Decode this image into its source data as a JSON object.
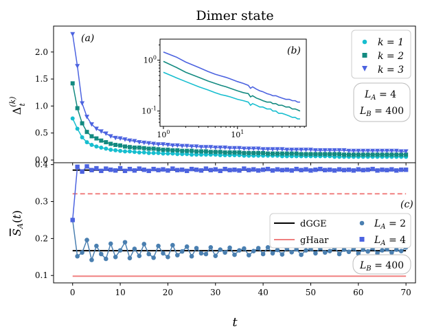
{
  "chart_data": [
    {
      "type": "scatter",
      "panel_label": "(a)",
      "title": "Dimer state",
      "ylabel": "Δ_t^(k)",
      "xlim": [
        -4,
        72
      ],
      "ylim": [
        -0.05,
        2.48
      ],
      "yticks": [
        "0.0",
        "0.5",
        "1.0",
        "1.5",
        "2.0"
      ],
      "legend_position": "upper right",
      "box_labels": [
        "L_A = 4",
        "L_B = 400"
      ],
      "series": [
        {
          "name": "k = 1",
          "color": "#17becf",
          "marker": "circle",
          "values": [
            0.77,
            0.58,
            0.42,
            0.33,
            0.28,
            0.25,
            0.23,
            0.21,
            0.19,
            0.18,
            0.17,
            0.16,
            0.16,
            0.15,
            0.14,
            0.14,
            0.13,
            0.13,
            0.13,
            0.12,
            0.12,
            0.12,
            0.11,
            0.11,
            0.11,
            0.1,
            0.1,
            0.1,
            0.1,
            0.1,
            0.1,
            0.09,
            0.09,
            0.09,
            0.09,
            0.09,
            0.08,
            0.08,
            0.08,
            0.08,
            0.08,
            0.08,
            0.08,
            0.08,
            0.07,
            0.07,
            0.07,
            0.07,
            0.07,
            0.07,
            0.07,
            0.07,
            0.07,
            0.07,
            0.07,
            0.06,
            0.06,
            0.06,
            0.06,
            0.06,
            0.06,
            0.06,
            0.06,
            0.06,
            0.06,
            0.06,
            0.06,
            0.06,
            0.06,
            0.06,
            0.06
          ]
        },
        {
          "name": "k = 2",
          "color": "#138a80",
          "marker": "square",
          "values": [
            1.42,
            0.96,
            0.68,
            0.52,
            0.44,
            0.4,
            0.36,
            0.33,
            0.3,
            0.28,
            0.27,
            0.25,
            0.24,
            0.23,
            0.23,
            0.22,
            0.21,
            0.21,
            0.2,
            0.19,
            0.19,
            0.18,
            0.18,
            0.17,
            0.17,
            0.17,
            0.16,
            0.16,
            0.16,
            0.15,
            0.15,
            0.15,
            0.14,
            0.14,
            0.14,
            0.14,
            0.13,
            0.13,
            0.13,
            0.13,
            0.13,
            0.12,
            0.12,
            0.12,
            0.12,
            0.12,
            0.12,
            0.12,
            0.11,
            0.11,
            0.11,
            0.11,
            0.11,
            0.11,
            0.11,
            0.11,
            0.11,
            0.1,
            0.1,
            0.1,
            0.1,
            0.1,
            0.1,
            0.1,
            0.1,
            0.1,
            0.1,
            0.1,
            0.1,
            0.1,
            0.1
          ]
        },
        {
          "name": "k = 3",
          "color": "#4c63e0",
          "marker": "triangle",
          "values": [
            2.33,
            1.74,
            1.05,
            0.8,
            0.66,
            0.58,
            0.53,
            0.49,
            0.44,
            0.41,
            0.4,
            0.38,
            0.36,
            0.35,
            0.33,
            0.32,
            0.31,
            0.3,
            0.29,
            0.29,
            0.28,
            0.27,
            0.27,
            0.26,
            0.26,
            0.25,
            0.25,
            0.24,
            0.24,
            0.24,
            0.23,
            0.23,
            0.23,
            0.22,
            0.22,
            0.22,
            0.21,
            0.21,
            0.21,
            0.21,
            0.2,
            0.2,
            0.2,
            0.2,
            0.2,
            0.19,
            0.19,
            0.19,
            0.19,
            0.19,
            0.19,
            0.18,
            0.18,
            0.18,
            0.18,
            0.18,
            0.18,
            0.18,
            0.17,
            0.17,
            0.17,
            0.17,
            0.17,
            0.17,
            0.17,
            0.17,
            0.17,
            0.17,
            0.17,
            0.16,
            0.16
          ]
        }
      ]
    },
    {
      "type": "line",
      "panel_label": "(b)",
      "xscale": "log",
      "yscale": "log",
      "xlim": [
        0.9,
        85
      ],
      "ylim": [
        0.05,
        2.6
      ],
      "xticks": [
        "10^0",
        "10^1"
      ],
      "yticks": [
        "10^-1",
        "10^0"
      ],
      "x": [
        1,
        1.5,
        2,
        3,
        4,
        5,
        6,
        7,
        8,
        10,
        12,
        14,
        15,
        16,
        18,
        20,
        22,
        25,
        28,
        30,
        33,
        36,
        40,
        45,
        50,
        55,
        60,
        65,
        70
      ],
      "series": [
        {
          "name": "k = 1",
          "color": "#17becf",
          "values": [
            0.58,
            0.45,
            0.38,
            0.3,
            0.26,
            0.23,
            0.21,
            0.2,
            0.19,
            0.17,
            0.16,
            0.15,
            0.13,
            0.14,
            0.13,
            0.12,
            0.12,
            0.11,
            0.11,
            0.1,
            0.1,
            0.09,
            0.09,
            0.085,
            0.08,
            0.075,
            0.075,
            0.07,
            0.07
          ]
        },
        {
          "name": "k = 2",
          "color": "#138a80",
          "values": [
            0.95,
            0.72,
            0.58,
            0.46,
            0.39,
            0.35,
            0.32,
            0.3,
            0.28,
            0.25,
            0.23,
            0.22,
            0.19,
            0.2,
            0.18,
            0.17,
            0.16,
            0.15,
            0.15,
            0.14,
            0.14,
            0.13,
            0.13,
            0.12,
            0.12,
            0.11,
            0.11,
            0.105,
            0.1
          ]
        },
        {
          "name": "k = 3",
          "color": "#4c63e0",
          "values": [
            1.45,
            1.15,
            0.92,
            0.72,
            0.6,
            0.53,
            0.49,
            0.46,
            0.43,
            0.38,
            0.35,
            0.32,
            0.28,
            0.3,
            0.27,
            0.25,
            0.24,
            0.22,
            0.21,
            0.2,
            0.2,
            0.19,
            0.18,
            0.17,
            0.17,
            0.16,
            0.16,
            0.15,
            0.15
          ]
        }
      ]
    },
    {
      "type": "scatter",
      "panel_label": "(c)",
      "xlabel": "t",
      "ylabel": "S_A(t) (overline)",
      "xlim": [
        -4,
        72
      ],
      "ylim": [
        0.08,
        0.405
      ],
      "xticks": [
        "0",
        "10",
        "20",
        "30",
        "40",
        "50",
        "60",
        "70"
      ],
      "yticks": [
        "0.1",
        "0.2",
        "0.3",
        "0.4"
      ],
      "legend_position": "right",
      "box_labels": [
        "L_B = 400"
      ],
      "reference_lines": [
        {
          "name": "dGGE",
          "color": "#000000",
          "style": "solid",
          "values": [
            0.385,
            0.167
          ]
        },
        {
          "name": "gHaar",
          "color": "#f08080",
          "style": "dashed",
          "values": [
            0.321
          ]
        },
        {
          "name": "gHaar",
          "color": "#f08080",
          "style": "solid",
          "values": [
            0.098
          ]
        }
      ],
      "series": [
        {
          "name": "L_A = 2",
          "color": "#4a7fb0",
          "marker": "circle",
          "values": [
            0.25,
            0.152,
            0.162,
            0.196,
            0.142,
            0.18,
            0.158,
            0.145,
            0.186,
            0.15,
            0.168,
            0.19,
            0.147,
            0.172,
            0.153,
            0.185,
            0.158,
            0.148,
            0.18,
            0.16,
            0.15,
            0.182,
            0.155,
            0.165,
            0.178,
            0.152,
            0.174,
            0.16,
            0.158,
            0.176,
            0.153,
            0.17,
            0.162,
            0.175,
            0.156,
            0.168,
            0.173,
            0.155,
            0.166,
            0.174,
            0.158,
            0.176,
            0.16,
            0.169,
            0.157,
            0.173,
            0.163,
            0.171,
            0.156,
            0.168,
            0.172,
            0.16,
            0.174,
            0.162,
            0.166,
            0.175,
            0.158,
            0.17,
            0.164,
            0.173,
            0.159,
            0.17,
            0.165,
            0.174,
            0.16,
            0.168,
            0.171,
            0.162,
            0.17,
            0.166,
            0.176
          ]
        },
        {
          "name": "L_A = 4",
          "color": "#4c63e0",
          "marker": "square",
          "values": [
            0.25,
            0.394,
            0.381,
            0.395,
            0.385,
            0.39,
            0.383,
            0.389,
            0.386,
            0.384,
            0.39,
            0.383,
            0.388,
            0.384,
            0.389,
            0.386,
            0.383,
            0.388,
            0.385,
            0.387,
            0.384,
            0.389,
            0.385,
            0.386,
            0.383,
            0.388,
            0.386,
            0.384,
            0.389,
            0.385,
            0.387,
            0.383,
            0.388,
            0.385,
            0.386,
            0.384,
            0.389,
            0.385,
            0.387,
            0.384,
            0.386,
            0.388,
            0.384,
            0.387,
            0.385,
            0.386,
            0.384,
            0.388,
            0.385,
            0.387,
            0.384,
            0.386,
            0.388,
            0.385,
            0.386,
            0.384,
            0.387,
            0.385,
            0.386,
            0.384,
            0.387,
            0.385,
            0.386,
            0.388,
            0.384,
            0.386,
            0.385,
            0.387,
            0.384,
            0.386,
            0.386
          ]
        }
      ]
    }
  ]
}
